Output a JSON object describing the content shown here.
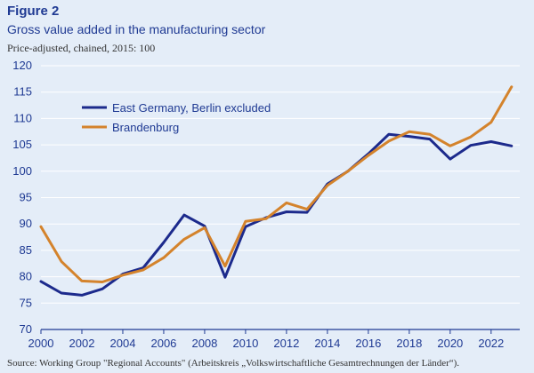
{
  "figure_label": "Figure 2",
  "title": "Gross value added in the manufacturing sector",
  "subtitle": "Price-adjusted, chained, 2015: 100",
  "source": "Source: Working Group \"Regional Accounts\" (Arbeitskreis „Volkswirtschaftliche Gesamtrechnungen der Länder“).",
  "colors": {
    "background": "#e4edf8",
    "text": "#1f3a93",
    "east_germany": "#1c2a8c",
    "brandenburg": "#d4832c",
    "grid": "#ffffff"
  },
  "chart_data": {
    "type": "line",
    "x": [
      2000,
      2001,
      2002,
      2003,
      2004,
      2005,
      2006,
      2007,
      2008,
      2009,
      2010,
      2011,
      2012,
      2013,
      2014,
      2015,
      2016,
      2017,
      2018,
      2019,
      2020,
      2021,
      2022,
      2023
    ],
    "xticks": [
      2000,
      2002,
      2004,
      2006,
      2008,
      2010,
      2012,
      2014,
      2016,
      2018,
      2020,
      2022
    ],
    "yticks": [
      70,
      75,
      80,
      85,
      90,
      95,
      100,
      105,
      110,
      115,
      120
    ],
    "xlim": [
      2000,
      2023.4
    ],
    "ylim": [
      70,
      120
    ],
    "grid": "horizontal",
    "legend_position": "top-left",
    "series": [
      {
        "name": "East Germany, Berlin excluded",
        "color": "#1c2a8c",
        "values": [
          79.1,
          76.9,
          76.5,
          77.7,
          80.5,
          81.7,
          86.5,
          91.7,
          89.6,
          79.9,
          89.5,
          91.2,
          92.3,
          92.2,
          97.6,
          100.0,
          103.3,
          107.0,
          106.6,
          106.1,
          102.3,
          104.9,
          105.6,
          104.8
        ]
      },
      {
        "name": "Brandenburg",
        "color": "#d4832c",
        "values": [
          89.5,
          82.9,
          79.2,
          79.0,
          80.3,
          81.3,
          83.6,
          87.1,
          89.3,
          82.0,
          90.5,
          91.0,
          94.0,
          92.8,
          97.3,
          100.0,
          103.0,
          105.7,
          107.5,
          107.0,
          104.8,
          106.5,
          109.3,
          116.0
        ]
      }
    ]
  }
}
